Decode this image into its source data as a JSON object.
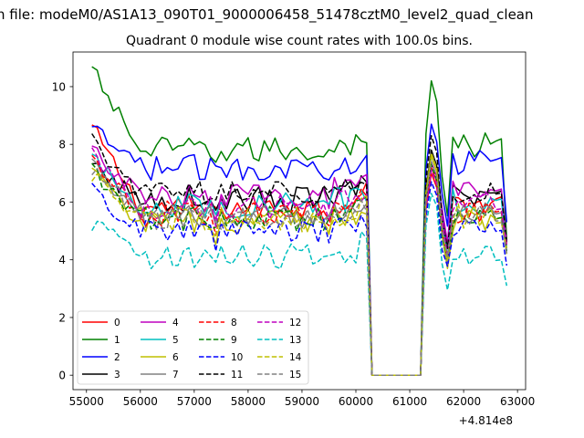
{
  "figure": {
    "suptitle": "n file: modeM0/AS1A13_090T01_9000006458_51478cztM0_level2_quad_clean",
    "title": "Quadrant 0 module wise count rates with 100.0s bins.",
    "x_offset_label": "+4.814e8"
  },
  "chart_data": {
    "type": "line",
    "title": "Quadrant 0 module wise count rates with 100.0s bins.",
    "xlabel": "",
    "ylabel": "",
    "x_offset": 481400000,
    "xlim": [
      54750,
      63150
    ],
    "ylim": [
      -0.5,
      11.2
    ],
    "xticks": [
      55000,
      56000,
      57000,
      58000,
      59000,
      60000,
      61000,
      62000,
      63000
    ],
    "xtick_labels": [
      "55000",
      "56000",
      "57000",
      "58000",
      "59000",
      "60000",
      "61000",
      "62000",
      "63000"
    ],
    "yticks": [
      0,
      2,
      4,
      6,
      8,
      10
    ],
    "ytick_labels": [
      "0",
      "2",
      "4",
      "6",
      "8",
      "10"
    ],
    "grid": false,
    "legend_position": "lower-left",
    "legend_columns": 4,
    "x_start": 55100,
    "x_step": 100,
    "gap": {
      "from": 60300,
      "to": 61200,
      "value": 0
    },
    "series": [
      {
        "name": "0",
        "color": "#ff0000",
        "dash": "solid",
        "start": 8.6,
        "level": 5.8,
        "peak": 7.0,
        "end": 4.5
      },
      {
        "name": "1",
        "color": "#008000",
        "dash": "solid",
        "start": 10.6,
        "level": 7.8,
        "peak": 10.2,
        "end": 4.7
      },
      {
        "name": "2",
        "color": "#0000ff",
        "dash": "solid",
        "start": 8.5,
        "level": 7.2,
        "peak": 8.7,
        "end": 5.3
      },
      {
        "name": "3",
        "color": "#000000",
        "dash": "solid",
        "start": 7.2,
        "level": 6.1,
        "peak": 7.8,
        "end": 4.6
      },
      {
        "name": "4",
        "color": "#bf00bf",
        "dash": "solid",
        "start": 7.8,
        "level": 6.2,
        "peak": 7.4,
        "end": 4.6
      },
      {
        "name": "5",
        "color": "#00bfbf",
        "dash": "solid",
        "start": 7.5,
        "level": 5.9,
        "peak": 7.6,
        "end": 4.4
      },
      {
        "name": "6",
        "color": "#bfbf00",
        "dash": "solid",
        "start": 7.0,
        "level": 5.3,
        "peak": 7.6,
        "end": 4.2
      },
      {
        "name": "7",
        "color": "#808080",
        "dash": "solid",
        "start": 7.3,
        "level": 5.5,
        "peak": 7.2,
        "end": 4.3
      },
      {
        "name": "8",
        "color": "#ff0000",
        "dash": "dashed",
        "start": 7.4,
        "level": 5.6,
        "peak": 7.2,
        "end": 4.5
      },
      {
        "name": "9",
        "color": "#008000",
        "dash": "dashed",
        "start": 7.1,
        "level": 5.4,
        "peak": 7.3,
        "end": 4.3
      },
      {
        "name": "10",
        "color": "#0000ff",
        "dash": "dashed",
        "start": 6.4,
        "level": 5.0,
        "peak": 6.7,
        "end": 3.8
      },
      {
        "name": "11",
        "color": "#000000",
        "dash": "dashed",
        "start": 8.1,
        "level": 6.3,
        "peak": 8.3,
        "end": 4.6
      },
      {
        "name": "12",
        "color": "#bf00bf",
        "dash": "dashed",
        "start": 7.6,
        "level": 5.8,
        "peak": 7.1,
        "end": 4.5
      },
      {
        "name": "13",
        "color": "#00bfbf",
        "dash": "dashed",
        "start": 5.3,
        "level": 4.1,
        "peak": 6.3,
        "end": 3.1
      },
      {
        "name": "14",
        "color": "#bfbf00",
        "dash": "dashed",
        "start": 7.0,
        "level": 5.4,
        "peak": 7.7,
        "end": 4.4
      },
      {
        "name": "15",
        "color": "#808080",
        "dash": "dashed",
        "start": 7.2,
        "level": 5.5,
        "peak": 7.4,
        "end": 4.2
      }
    ]
  }
}
